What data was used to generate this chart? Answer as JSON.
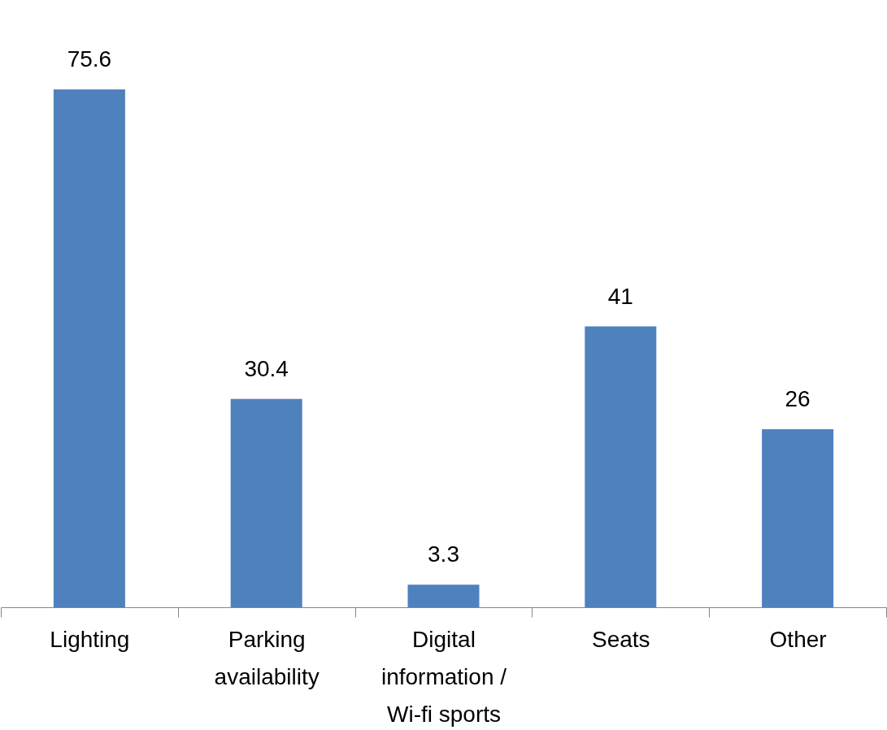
{
  "chart_data": {
    "type": "bar",
    "categories": [
      "Lighting",
      "Parking\navailability",
      "Digital\ninformation /\nWi-fi sports",
      "Seats",
      "Other"
    ],
    "values": [
      75.6,
      30.4,
      3.3,
      41,
      26
    ],
    "color": "#4f81bd",
    "data_labels": true,
    "grid": false
  }
}
